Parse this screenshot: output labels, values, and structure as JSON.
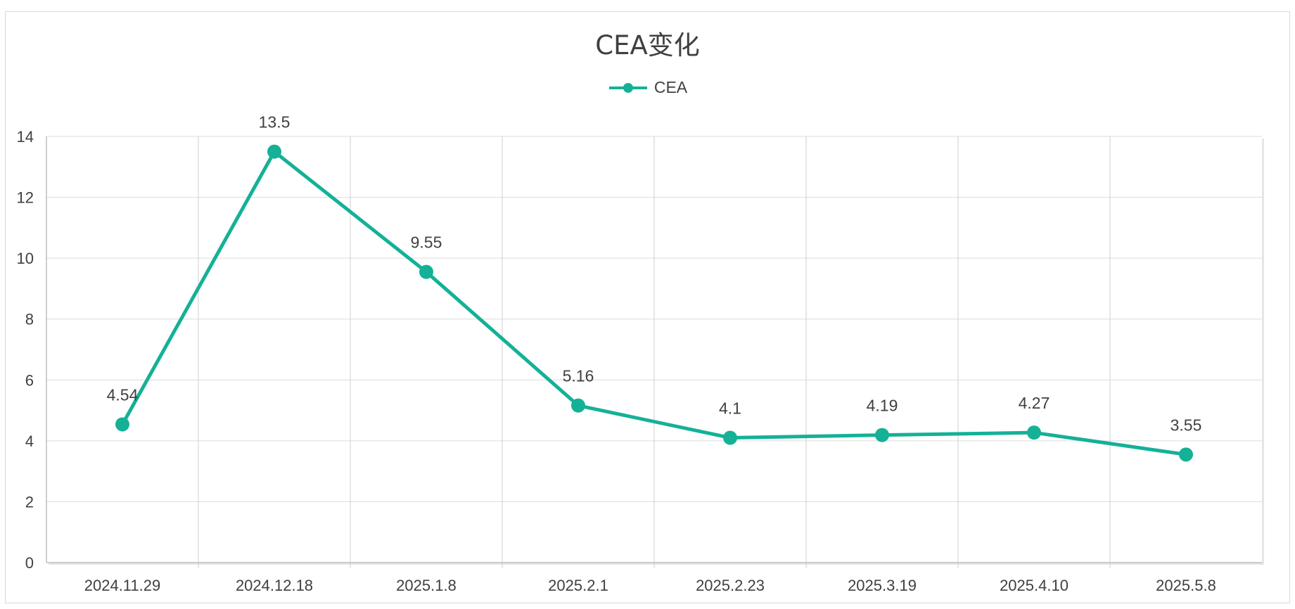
{
  "chart_data": {
    "type": "line",
    "title": "CEA变化",
    "xlabel": "",
    "ylabel": "",
    "categories": [
      "2024.11.29",
      "2024.12.18",
      "2025.1.8",
      "2025.2.1",
      "2025.2.23",
      "2025.3.19",
      "2025.4.10",
      "2025.5.8"
    ],
    "series": [
      {
        "name": "CEA",
        "values": [
          4.54,
          13.5,
          9.55,
          5.16,
          4.1,
          4.19,
          4.27,
          3.55
        ],
        "color": "#14b197"
      }
    ],
    "data_labels": [
      "4.54",
      "13.5",
      "9.55",
      "5.16",
      "4.1",
      "4.19",
      "4.27",
      "3.55"
    ],
    "ylim": [
      0,
      14
    ],
    "yticks": [
      "0",
      "2",
      "4",
      "6",
      "8",
      "10",
      "12",
      "14"
    ],
    "grid": true,
    "legend_position": "top-center"
  }
}
